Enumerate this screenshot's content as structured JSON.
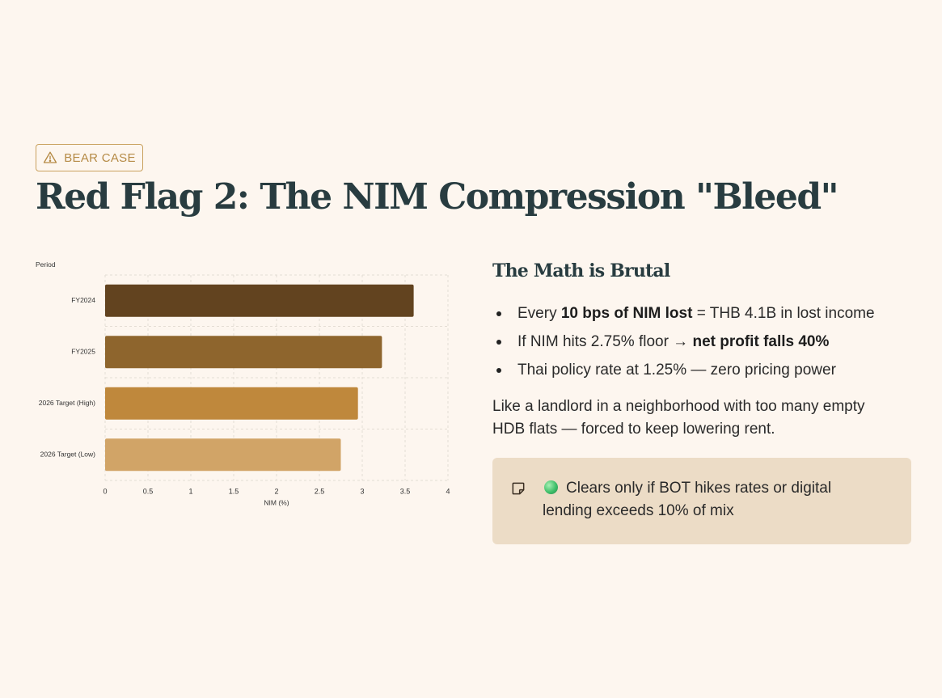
{
  "badge": {
    "label": "BEAR CASE",
    "icon": "warning-triangle-icon",
    "color": "#b58a45"
  },
  "title": "Red Flag 2: The NIM Compression \"Bleed\"",
  "chart_data": {
    "type": "bar",
    "orientation": "horizontal",
    "categories": [
      "FY2024",
      "FY2025",
      "2026 Target (High)",
      "2026 Target (Low)"
    ],
    "values": [
      3.6,
      3.23,
      2.95,
      2.75
    ],
    "colors": [
      "#62431f",
      "#8e652d",
      "#bf883c",
      "#d1a467"
    ],
    "ylabel": "Period",
    "xlabel": "NIM (%)",
    "xlim": [
      0,
      4
    ],
    "xticks": [
      0,
      0.5,
      1,
      1.5,
      2,
      2.5,
      3,
      3.5,
      4
    ],
    "grid": true
  },
  "right": {
    "heading": "The Math is Brutal",
    "bullets": [
      {
        "pre": "Every ",
        "bold": "10 bps of NIM lost",
        "post": " = THB 4.1B in lost income"
      },
      {
        "pre": "If NIM hits 2.75% floor → ",
        "bold": "net profit falls 40%",
        "post": ""
      },
      {
        "pre": "Thai policy rate at 1.25% — zero pricing power",
        "bold": "",
        "post": ""
      }
    ],
    "analogy": "Like a landlord in a neighborhood with too many empty HDB flats — forced to keep lowering rent."
  },
  "note": {
    "icon": "sticky-note-icon",
    "status_icon": "green-circle-icon",
    "text": "Clears only if BOT hikes rates or digital lending exceeds 10% of mix"
  }
}
